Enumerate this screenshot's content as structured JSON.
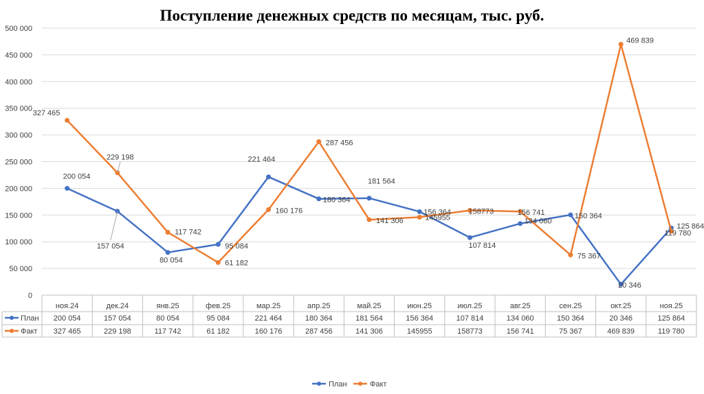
{
  "chart_data": {
    "type": "line",
    "title": "Поступление денежных средств по месяцам, тыс. руб.",
    "categories": [
      "ноя.24",
      "дек.24",
      "янв.25",
      "фев.25",
      "мар.25",
      "апр.25",
      "май.25",
      "июн.25",
      "июл.25",
      "авг.25",
      "сен.25",
      "окт.25",
      "ноя.25"
    ],
    "ylim": [
      0,
      500000
    ],
    "yticks": [
      0,
      50000,
      100000,
      150000,
      200000,
      250000,
      300000,
      350000,
      400000,
      450000,
      500000
    ],
    "ytick_labels": [
      "0",
      "50 000",
      "100 000",
      "150 000",
      "200 000",
      "250 000",
      "300 000",
      "350 000",
      "400 000",
      "450 000",
      "500 000"
    ],
    "grid": true,
    "legend": "bottom",
    "series": [
      {
        "name": "План",
        "color": "#4472C4",
        "values": [
          200054,
          157054,
          80054,
          95084,
          221464,
          180364,
          181564,
          156364,
          107814,
          134060,
          150364,
          20346,
          125864
        ],
        "labels": [
          "200 054",
          "157 054",
          "80 054",
          "95 084",
          "221 464",
          "180 364",
          "181 564",
          "156 364",
          "107 814",
          "134 060",
          "150 364",
          "20 346",
          "125 864"
        ]
      },
      {
        "name": "Факт",
        "color": "#ED7D31",
        "values": [
          327465,
          229198,
          117742,
          61182,
          160176,
          287456,
          141306,
          145955,
          158773,
          156741,
          75367,
          469839,
          119780
        ],
        "labels": [
          "327 465",
          "229 198",
          "117 742",
          "61 182",
          "160 176",
          "287 456",
          "141 306",
          "145955",
          "158773",
          "156 741",
          "75 367",
          "469 839",
          "119 780"
        ]
      }
    ]
  }
}
